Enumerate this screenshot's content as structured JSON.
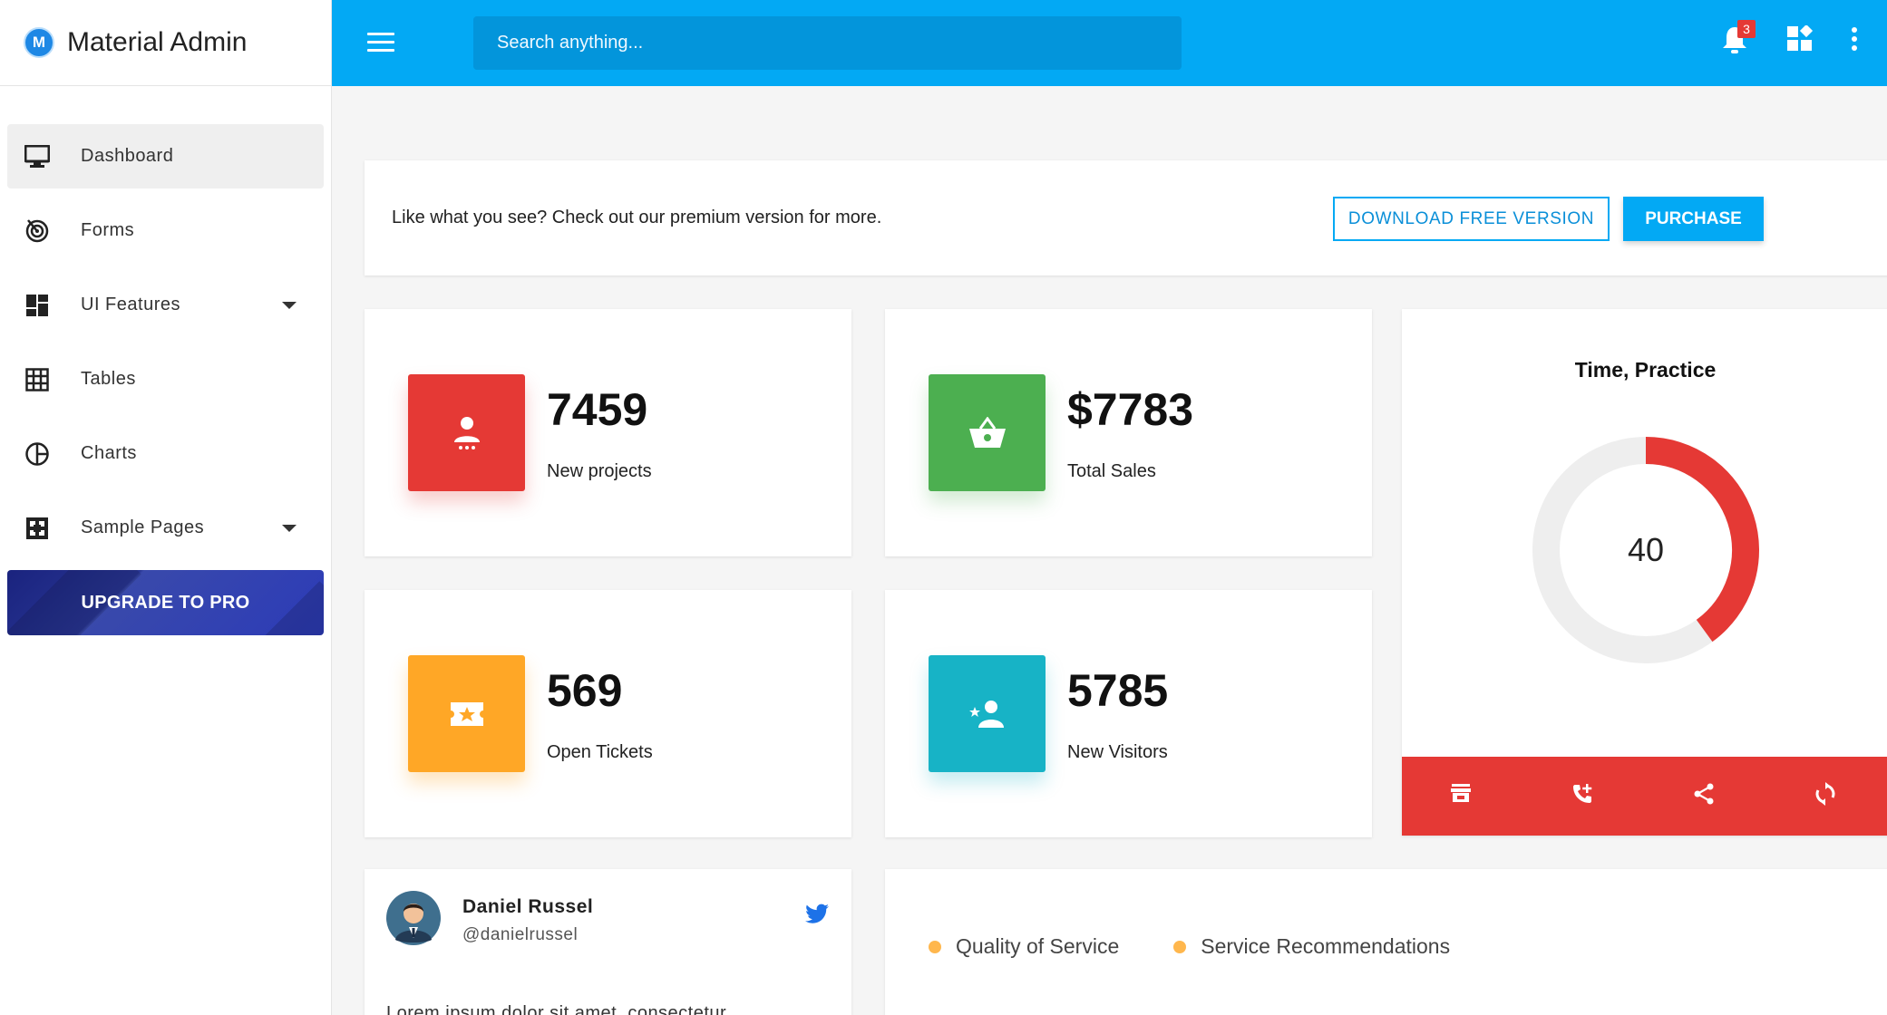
{
  "brand": {
    "logo_letter": "M",
    "name": "Material Admin"
  },
  "sidebar": {
    "items": [
      {
        "label": "Dashboard",
        "icon": "monitor-icon",
        "active": true
      },
      {
        "label": "Forms",
        "icon": "target-icon"
      },
      {
        "label": "UI Features",
        "icon": "dashboard-grid-icon",
        "has_caret": true
      },
      {
        "label": "Tables",
        "icon": "table-grid-icon"
      },
      {
        "label": "Charts",
        "icon": "pie-chart-icon"
      },
      {
        "label": "Sample Pages",
        "icon": "expand-icon",
        "has_caret": true
      }
    ],
    "upgrade_label": "UPGRADE TO PRO"
  },
  "topbar": {
    "search_placeholder": "Search anything...",
    "notification_count": "3",
    "icons": [
      "menu-icon",
      "bell-icon",
      "widgets-icon",
      "more-vert-icon"
    ]
  },
  "promo": {
    "text": "Like what you see? Check out our premium version for more.",
    "download_label": "DOWNLOAD FREE VERSION",
    "purchase_label": "PURCHASE"
  },
  "stats": [
    {
      "value": "7459",
      "label": "New projects",
      "color": "#e53935",
      "icon": "user-icon"
    },
    {
      "value": "$7783",
      "label": "Total Sales",
      "color": "#4caf50",
      "icon": "basket-icon"
    },
    {
      "value": "569",
      "label": "Open Tickets",
      "color": "#ffa726",
      "icon": "ticket-icon"
    },
    {
      "value": "5785",
      "label": "New Visitors",
      "color": "#17b3c6",
      "icon": "person-star-icon"
    }
  ],
  "gauge": {
    "title": "Time, Practice",
    "value": "40",
    "fraction": 0.4,
    "color": "#e53935",
    "footer_icons": [
      "store-icon",
      "phone-add-icon",
      "share-icon",
      "refresh-icon"
    ]
  },
  "profile": {
    "name": "Daniel Russel",
    "handle": "@danielrussel",
    "body": "Lorem ipsum dolor sit amet, consectetur"
  },
  "legend": {
    "items": [
      {
        "label": "Quality of Service",
        "color": "#ffb74d"
      },
      {
        "label": "Service Recommendations",
        "color": "#ffb74d"
      }
    ]
  }
}
